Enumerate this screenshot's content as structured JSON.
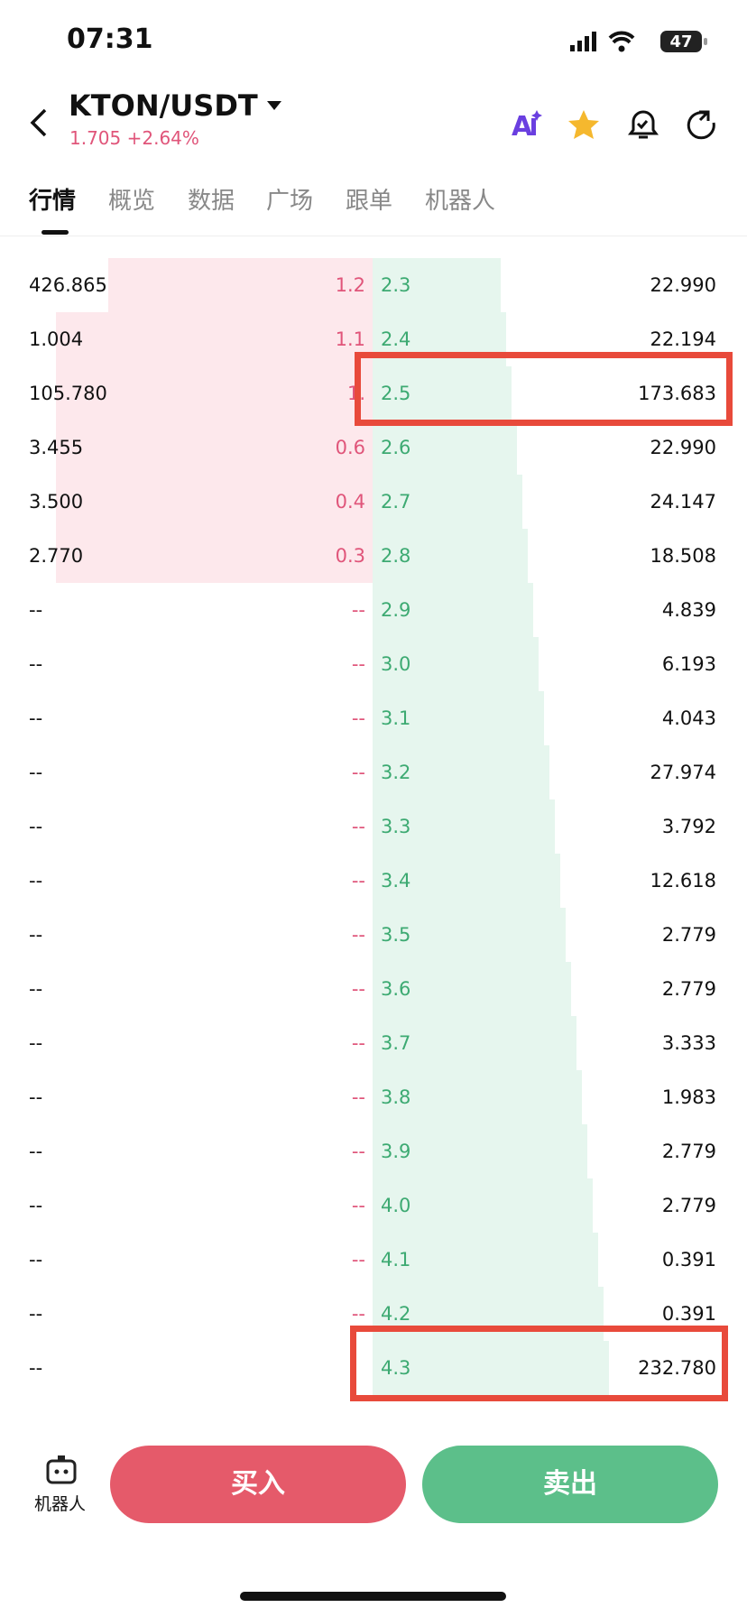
{
  "status_bar": {
    "time": "07:31",
    "battery": "47"
  },
  "header": {
    "pair": "KTON/USDT",
    "price_change": "1.705 +2.64%"
  },
  "tabs": [
    "行情",
    "概览",
    "数据",
    "广场",
    "跟单",
    "机器人"
  ],
  "order_book": {
    "rows": [
      [
        "426.865",
        "1.2",
        "2.3",
        "22.990"
      ],
      [
        "1.004",
        "1.1",
        "2.4",
        "22.194"
      ],
      [
        "105.780",
        "1.",
        "2.5",
        "173.683"
      ],
      [
        "3.455",
        "0.6",
        "2.6",
        "22.990"
      ],
      [
        "3.500",
        "0.4",
        "2.7",
        "24.147"
      ],
      [
        "2.770",
        "0.3",
        "2.8",
        "18.508"
      ],
      [
        "--",
        "--",
        "2.9",
        "4.839"
      ],
      [
        "--",
        "--",
        "3.0",
        "6.193"
      ],
      [
        "--",
        "--",
        "3.1",
        "4.043"
      ],
      [
        "--",
        "--",
        "3.2",
        "27.974"
      ],
      [
        "--",
        "--",
        "3.3",
        "3.792"
      ],
      [
        "--",
        "--",
        "3.4",
        "12.618"
      ],
      [
        "--",
        "--",
        "3.5",
        "2.779"
      ],
      [
        "--",
        "--",
        "3.6",
        "2.779"
      ],
      [
        "--",
        "--",
        "3.7",
        "3.333"
      ],
      [
        "--",
        "--",
        "3.8",
        "1.983"
      ],
      [
        "--",
        "--",
        "3.9",
        "2.779"
      ],
      [
        "--",
        "--",
        "4.0",
        "2.779"
      ],
      [
        "--",
        "--",
        "4.1",
        "0.391"
      ],
      [
        "--",
        "--",
        "4.2",
        "0.391"
      ],
      [
        "--",
        null,
        "4.3",
        "232.780"
      ]
    ]
  },
  "bottom_bar": {
    "robot": "机器人",
    "buy": "买入",
    "sell": "卖出"
  }
}
